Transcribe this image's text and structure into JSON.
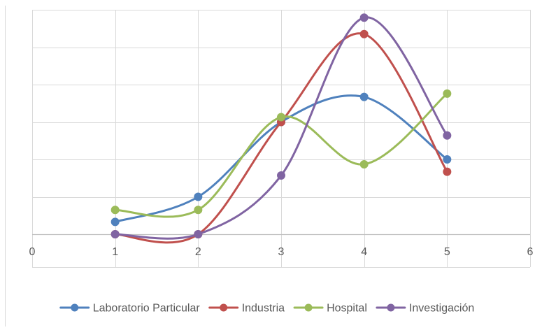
{
  "chart_data": {
    "type": "line",
    "smooth": true,
    "x_range": [
      0,
      6
    ],
    "y_range": [
      0,
      6
    ],
    "x_ticks": [
      0,
      1,
      2,
      3,
      4,
      5,
      6
    ],
    "y_gridlines": [
      0,
      1,
      2,
      3,
      4,
      5,
      6
    ],
    "y_tick_labels_shown": false,
    "grid": true,
    "legend_position": "bottom",
    "series": [
      {
        "name": "Laboratorio Particular",
        "color": "#4f81bd",
        "points": [
          [
            1,
            0.33
          ],
          [
            2,
            1.0
          ],
          [
            3,
            3.0
          ],
          [
            4,
            3.67
          ],
          [
            5,
            2.0
          ]
        ]
      },
      {
        "name": "Industria",
        "color": "#c0504d",
        "points": [
          [
            1,
            0.0
          ],
          [
            2,
            0.0
          ],
          [
            3,
            3.0
          ],
          [
            4,
            5.35
          ],
          [
            5,
            1.67
          ]
        ]
      },
      {
        "name": "Hospital",
        "color": "#9bbb59",
        "points": [
          [
            1,
            0.65
          ],
          [
            2,
            0.65
          ],
          [
            3,
            3.13
          ],
          [
            4,
            1.87
          ],
          [
            5,
            3.76
          ]
        ]
      },
      {
        "name": "Investigación",
        "color": "#8064a2",
        "points": [
          [
            1,
            0.0
          ],
          [
            2,
            0.0
          ],
          [
            3,
            1.57
          ],
          [
            4,
            5.79
          ],
          [
            5,
            2.64
          ]
        ]
      }
    ]
  }
}
